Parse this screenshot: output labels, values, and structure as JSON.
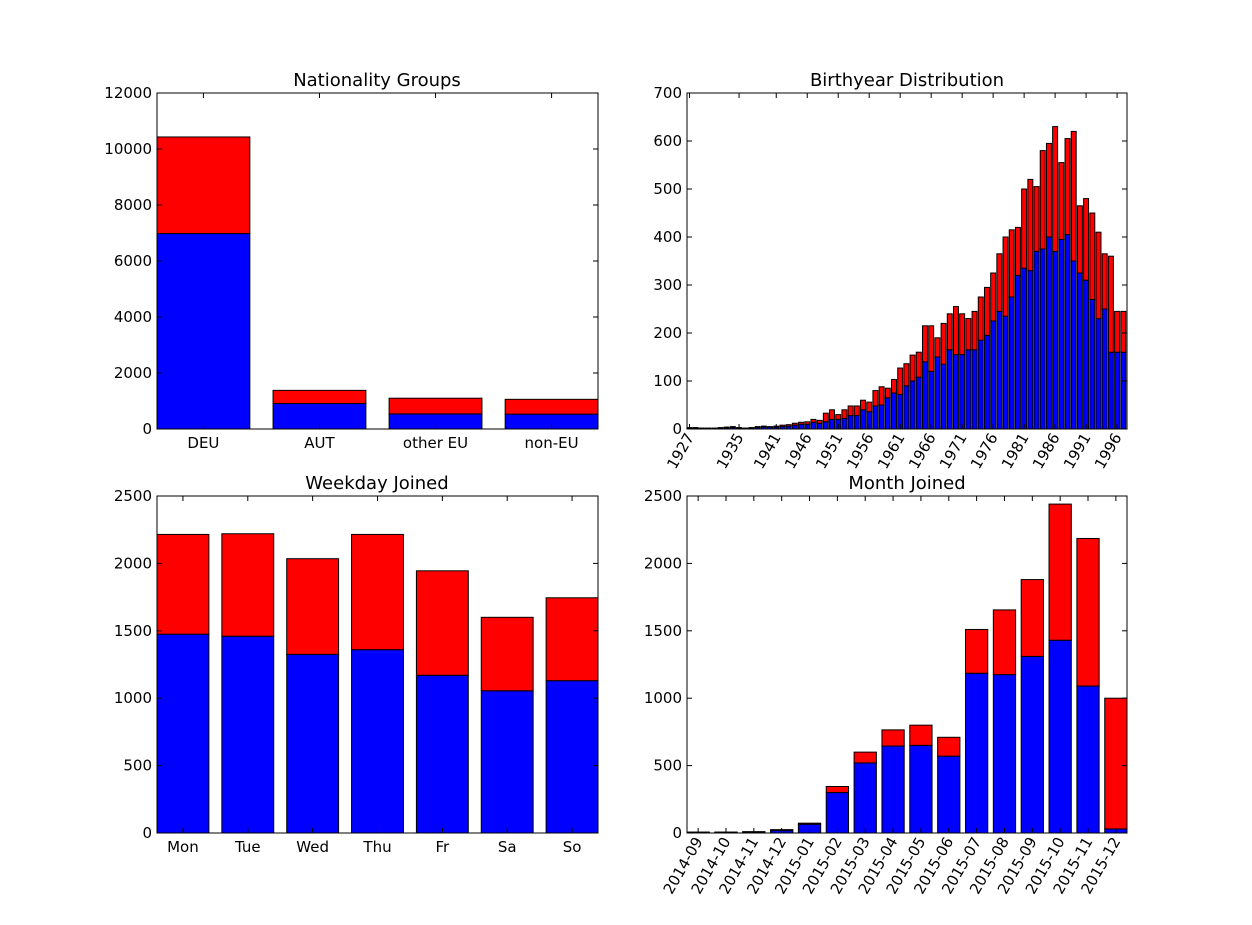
{
  "colors": {
    "series_lower": "#0000ff",
    "series_upper": "#ff0000",
    "edge": "#000000",
    "background": "#ffffff"
  },
  "chart_data": [
    {
      "type": "bar",
      "stacked": true,
      "title": "Nationality Groups",
      "categories": [
        "DEU",
        "AUT",
        "other EU",
        "non-EU"
      ],
      "series": [
        {
          "values": [
            6980,
            910,
            540,
            530
          ],
          "color": "#0000ff"
        },
        {
          "values": [
            3450,
            470,
            560,
            530
          ],
          "color": "#ff0000"
        }
      ],
      "ylim": [
        0,
        12000
      ],
      "yticks": [
        0,
        2000,
        4000,
        6000,
        8000,
        10000,
        12000
      ],
      "grid": false
    },
    {
      "type": "bar",
      "stacked": true,
      "title": "Birthyear Distribution",
      "x": [
        1927,
        1928,
        1929,
        1930,
        1931,
        1932,
        1933,
        1934,
        1935,
        1936,
        1937,
        1938,
        1939,
        1940,
        1941,
        1942,
        1943,
        1944,
        1945,
        1946,
        1947,
        1948,
        1949,
        1950,
        1951,
        1952,
        1953,
        1954,
        1955,
        1956,
        1957,
        1958,
        1959,
        1960,
        1961,
        1962,
        1963,
        1964,
        1965,
        1966,
        1967,
        1968,
        1969,
        1970,
        1971,
        1972,
        1973,
        1974,
        1975,
        1976,
        1977,
        1978,
        1979,
        1980,
        1981,
        1982,
        1983,
        1984,
        1985,
        1986,
        1987,
        1988,
        1989,
        1990,
        1991,
        1992,
        1993,
        1994,
        1995,
        1996,
        1997
      ],
      "xticks": [
        "1927",
        "1935",
        "1941",
        "1946",
        "1951",
        "1956",
        "1961",
        "1966",
        "1971",
        "1976",
        "1981",
        "1986",
        "1991",
        "1996"
      ],
      "series": [
        {
          "values": [
            1,
            1,
            1,
            1,
            1,
            1,
            2,
            3,
            2,
            1,
            2,
            3,
            4,
            4,
            4,
            5,
            6,
            8,
            10,
            10,
            14,
            12,
            15,
            20,
            20,
            22,
            28,
            28,
            40,
            36,
            48,
            50,
            65,
            75,
            72,
            90,
            100,
            108,
            140,
            120,
            150,
            135,
            165,
            155,
            155,
            165,
            165,
            185,
            195,
            225,
            245,
            235,
            275,
            320,
            335,
            330,
            370,
            375,
            400,
            370,
            395,
            405,
            350,
            325,
            310,
            270,
            230,
            250,
            160,
            160,
            160
          ],
          "color": "#0000ff"
        },
        {
          "values": [
            2,
            2,
            1,
            1,
            1,
            2,
            2,
            2,
            1,
            1,
            1,
            2,
            2,
            1,
            2,
            3,
            3,
            4,
            4,
            5,
            6,
            6,
            18,
            20,
            10,
            18,
            20,
            20,
            20,
            20,
            32,
            38,
            20,
            28,
            55,
            46,
            54,
            52,
            75,
            95,
            40,
            85,
            75,
            100,
            85,
            65,
            80,
            90,
            100,
            100,
            120,
            165,
            140,
            100,
            165,
            190,
            135,
            205,
            195,
            260,
            160,
            200,
            270,
            140,
            170,
            180,
            180,
            115,
            200,
            85,
            85
          ],
          "color": "#ff0000"
        }
      ],
      "xlim": [
        1926.6,
        1997.6
      ],
      "ylim": [
        0,
        700
      ],
      "yticks": [
        0,
        100,
        200,
        300,
        400,
        500,
        600,
        700
      ],
      "grid": false
    },
    {
      "type": "bar",
      "stacked": true,
      "title": "Weekday Joined",
      "categories": [
        "Mon",
        "Tue",
        "Wed",
        "Thu",
        "Fr",
        "Sa",
        "So"
      ],
      "series": [
        {
          "values": [
            1475,
            1460,
            1325,
            1360,
            1170,
            1055,
            1130
          ],
          "color": "#0000ff"
        },
        {
          "values": [
            740,
            760,
            710,
            855,
            775,
            545,
            615
          ],
          "color": "#ff0000"
        }
      ],
      "ylim": [
        0,
        2500
      ],
      "yticks": [
        0,
        500,
        1000,
        1500,
        2000,
        2500
      ],
      "grid": false
    },
    {
      "type": "bar",
      "stacked": true,
      "title": "Month Joined",
      "categories": [
        "2014-09",
        "2014-10",
        "2014-11",
        "2014-12",
        "2015-01",
        "2015-02",
        "2015-03",
        "2015-04",
        "2015-05",
        "2015-06",
        "2015-07",
        "2015-08",
        "2015-09",
        "2015-10",
        "2015-11",
        "2015-12"
      ],
      "series": [
        {
          "values": [
            5,
            5,
            8,
            18,
            65,
            300,
            520,
            645,
            650,
            570,
            1185,
            1175,
            1310,
            1430,
            1090,
            30
          ],
          "color": "#0000ff"
        },
        {
          "values": [
            2,
            2,
            2,
            7,
            8,
            45,
            80,
            120,
            150,
            140,
            325,
            480,
            570,
            1010,
            1095,
            970
          ],
          "color": "#ff0000"
        }
      ],
      "ylim": [
        0,
        2500
      ],
      "yticks": [
        0,
        500,
        1000,
        1500,
        2000,
        2500
      ],
      "grid": false
    }
  ]
}
